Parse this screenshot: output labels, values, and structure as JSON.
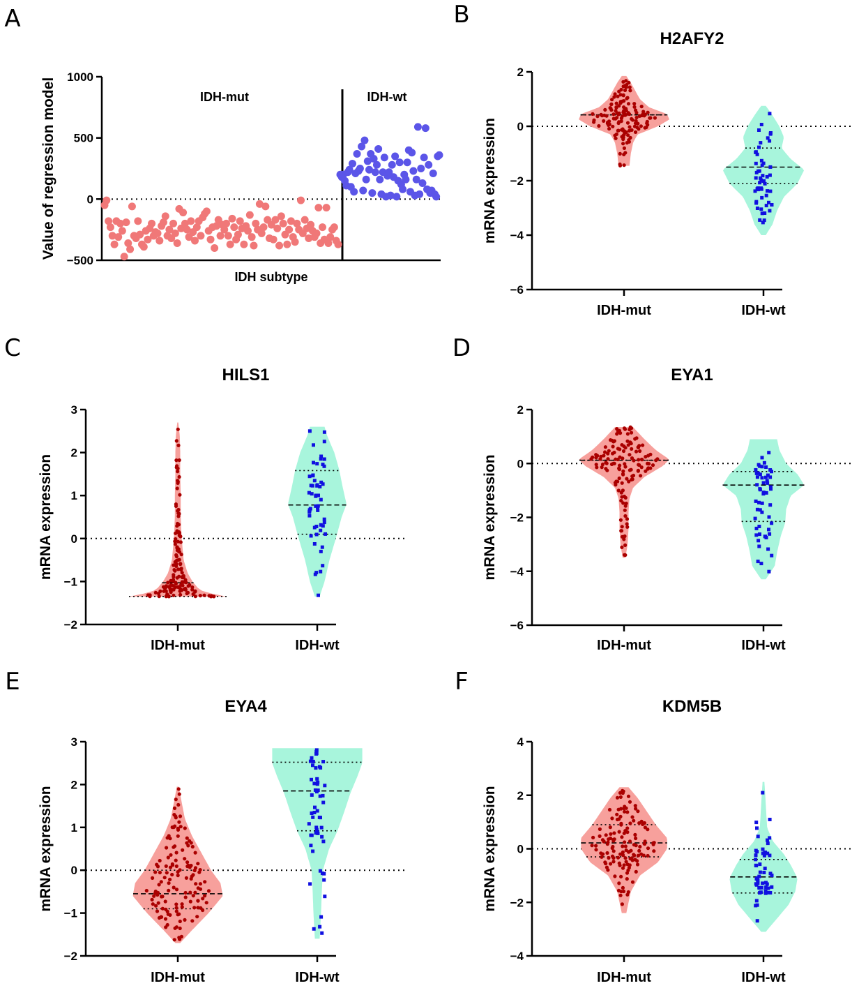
{
  "colors": {
    "mut_fill": "#f7a09c",
    "mut_point": "#aa0000",
    "wt_fill": "#a8f5dc",
    "wt_point": "#1010e0",
    "scatter_mut": "#f07878",
    "scatter_wt": "#5b55e8",
    "axis": "#000000"
  },
  "chart_data": [
    {
      "id": "A",
      "letter": "A",
      "type": "scatter",
      "title": "",
      "xlabel": "IDH subtype",
      "ylabel": "Value of regression model",
      "ylim": [
        -500,
        1000
      ],
      "yticks": [
        -500,
        0,
        500,
        1000
      ],
      "ytick_labels": [
        "−500",
        "0",
        "500",
        "1000"
      ],
      "group_labels": [
        "IDH-mut",
        "IDH-wt"
      ],
      "reference_line": 0,
      "series": [
        {
          "name": "IDH-mut",
          "values": [
            -50,
            -10,
            -180,
            -230,
            -300,
            -370,
            -180,
            -310,
            -200,
            -260,
            -470,
            -190,
            -360,
            -410,
            -60,
            -300,
            -320,
            -180,
            -290,
            -370,
            -390,
            -260,
            -330,
            -240,
            -200,
            -300,
            -270,
            -280,
            -340,
            -220,
            -190,
            -140,
            -300,
            -250,
            -320,
            -200,
            -280,
            -360,
            -80,
            -240,
            -110,
            -200,
            -250,
            -310,
            -180,
            -270,
            -340,
            -230,
            -180,
            -300,
            -150,
            -120,
            -100,
            -260,
            -330,
            -230,
            -400,
            -220,
            -170,
            -300,
            -210,
            -250,
            -200,
            -300,
            -370,
            -160,
            -230,
            -330,
            -290,
            -180,
            -240,
            -370,
            -220,
            -260,
            -130,
            -310,
            -380,
            -200,
            -250,
            -40,
            -280,
            -230,
            -60,
            -170,
            -320,
            -210,
            -330,
            -170,
            -240,
            -380,
            -140,
            -200,
            -290,
            -370,
            -250,
            -180,
            -310,
            -350,
            -200,
            -250,
            -10,
            -280,
            -170,
            -240,
            -320,
            -210,
            -260,
            -310,
            -280,
            -70,
            -360,
            -230,
            -330,
            -70,
            -360,
            -310,
            -250,
            -230,
            -340,
            -370
          ],
          "marker": "circle"
        },
        {
          "name": "IDH-wt",
          "values": [
            200,
            180,
            200,
            150,
            110,
            220,
            240,
            100,
            290,
            60,
            210,
            370,
            230,
            250,
            430,
            70,
            480,
            160,
            310,
            240,
            370,
            50,
            330,
            220,
            280,
            410,
            160,
            40,
            220,
            340,
            20,
            190,
            220,
            30,
            280,
            180,
            350,
            20,
            150,
            300,
            120,
            80,
            200,
            160,
            300,
            400,
            60,
            380,
            230,
            30,
            160,
            590,
            40,
            250,
            130,
            340,
            580,
            80,
            280,
            50,
            70,
            210,
            40,
            20,
            350,
            360
          ],
          "marker": "circle"
        }
      ]
    },
    {
      "id": "B",
      "letter": "B",
      "type": "violin",
      "title": "H2AFY2",
      "xlabel": "",
      "ylabel": "mRNA expression",
      "ylim": [
        -6,
        2
      ],
      "yticks": [
        -6,
        -4,
        -2,
        0,
        2
      ],
      "ytick_labels": [
        "−6",
        "−4",
        "−2",
        "0",
        "2"
      ],
      "categories": [
        "IDH-mut",
        "IDH-wt"
      ],
      "reference_line": 0,
      "groups": [
        {
          "name": "IDH-mut",
          "min": -1.45,
          "max": 1.85,
          "median": 0.42,
          "q1": 0.42,
          "q3": 0.42,
          "density": [
            [
              -1.45,
              0.12
            ],
            [
              -1.0,
              0.15
            ],
            [
              -0.6,
              0.2
            ],
            [
              -0.3,
              0.3
            ],
            [
              0.0,
              0.75
            ],
            [
              0.25,
              1.0
            ],
            [
              0.45,
              0.95
            ],
            [
              0.7,
              0.55
            ],
            [
              1.0,
              0.35
            ],
            [
              1.3,
              0.25
            ],
            [
              1.6,
              0.15
            ],
            [
              1.85,
              0.05
            ]
          ]
        },
        {
          "name": "IDH-wt",
          "min": -4.0,
          "max": 0.75,
          "median": -1.5,
          "q1": -2.1,
          "q3": -0.8,
          "density": [
            [
              -4.0,
              0.05
            ],
            [
              -3.6,
              0.2
            ],
            [
              -3.1,
              0.3
            ],
            [
              -2.6,
              0.45
            ],
            [
              -2.1,
              0.75
            ],
            [
              -1.6,
              0.9
            ],
            [
              -1.2,
              0.6
            ],
            [
              -0.8,
              0.4
            ],
            [
              -0.4,
              0.45
            ],
            [
              0.0,
              0.35
            ],
            [
              0.4,
              0.2
            ],
            [
              0.75,
              0.05
            ]
          ]
        }
      ]
    },
    {
      "id": "C",
      "letter": "C",
      "type": "violin",
      "title": "HILS1",
      "xlabel": "",
      "ylabel": "mRNA expression",
      "ylim": [
        -2,
        3
      ],
      "yticks": [
        -2,
        -1,
        0,
        1,
        2,
        3
      ],
      "ytick_labels": [
        "−2",
        "−1",
        "0",
        "1",
        "2",
        "3"
      ],
      "categories": [
        "IDH-mut",
        "IDH-wt"
      ],
      "reference_line": 0,
      "groups": [
        {
          "name": "IDH-mut",
          "min": -1.35,
          "max": 2.7,
          "median": -1.03,
          "q1": -1.35,
          "q3": -1.03,
          "density": [
            [
              -1.35,
              1.0
            ],
            [
              -1.3,
              0.75
            ],
            [
              -1.2,
              0.45
            ],
            [
              -1.0,
              0.3
            ],
            [
              -0.8,
              0.2
            ],
            [
              -0.5,
              0.12
            ],
            [
              0.0,
              0.08
            ],
            [
              0.5,
              0.06
            ],
            [
              1.0,
              0.06
            ],
            [
              1.5,
              0.05
            ],
            [
              2.0,
              0.05
            ],
            [
              2.4,
              0.04
            ],
            [
              2.7,
              0.01
            ]
          ]
        },
        {
          "name": "IDH-wt",
          "min": -1.35,
          "max": 2.6,
          "median": 0.78,
          "q1": 0.1,
          "q3": 1.58,
          "density": [
            [
              -1.35,
              0.05
            ],
            [
              -1.0,
              0.15
            ],
            [
              -0.5,
              0.25
            ],
            [
              0.0,
              0.38
            ],
            [
              0.5,
              0.5
            ],
            [
              0.8,
              0.6
            ],
            [
              1.2,
              0.52
            ],
            [
              1.6,
              0.45
            ],
            [
              2.0,
              0.35
            ],
            [
              2.4,
              0.2
            ],
            [
              2.6,
              0.15
            ]
          ]
        }
      ]
    },
    {
      "id": "D",
      "letter": "D",
      "type": "violin",
      "title": "EYA1",
      "xlabel": "",
      "ylabel": "mRNA expression",
      "ylim": [
        -6,
        2
      ],
      "yticks": [
        -6,
        -4,
        -2,
        0,
        2
      ],
      "ytick_labels": [
        "−6",
        "−4",
        "−2",
        "0",
        "2"
      ],
      "categories": [
        "IDH-mut",
        "IDH-wt"
      ],
      "reference_line": 0,
      "groups": [
        {
          "name": "IDH-mut",
          "min": -3.5,
          "max": 1.35,
          "median": 0.12,
          "q1": 0.12,
          "q3": 0.12,
          "density": [
            [
              -3.5,
              0.03
            ],
            [
              -3.0,
              0.08
            ],
            [
              -2.4,
              0.1
            ],
            [
              -1.8,
              0.1
            ],
            [
              -1.3,
              0.12
            ],
            [
              -0.9,
              0.2
            ],
            [
              -0.5,
              0.45
            ],
            [
              -0.1,
              0.85
            ],
            [
              0.15,
              1.0
            ],
            [
              0.5,
              0.7
            ],
            [
              0.9,
              0.45
            ],
            [
              1.35,
              0.2
            ]
          ]
        },
        {
          "name": "IDH-wt",
          "min": -4.3,
          "max": 0.9,
          "median": -0.8,
          "q1": -2.15,
          "q3": -0.3,
          "density": [
            [
              -4.3,
              0.05
            ],
            [
              -3.8,
              0.25
            ],
            [
              -3.3,
              0.3
            ],
            [
              -2.7,
              0.38
            ],
            [
              -2.2,
              0.48
            ],
            [
              -1.7,
              0.5
            ],
            [
              -1.2,
              0.6
            ],
            [
              -0.8,
              0.9
            ],
            [
              -0.4,
              0.75
            ],
            [
              0.0,
              0.5
            ],
            [
              0.5,
              0.35
            ],
            [
              0.9,
              0.3
            ]
          ]
        }
      ]
    },
    {
      "id": "E",
      "letter": "E",
      "type": "violin",
      "title": "EYA4",
      "xlabel": "",
      "ylabel": "mRNA expression",
      "ylim": [
        -2,
        3
      ],
      "yticks": [
        -2,
        -1,
        0,
        1,
        2,
        3
      ],
      "ytick_labels": [
        "−2",
        "−1",
        "0",
        "1",
        "2",
        "3"
      ],
      "categories": [
        "IDH-mut",
        "IDH-wt"
      ],
      "reference_line": 0,
      "groups": [
        {
          "name": "IDH-mut",
          "min": -1.7,
          "max": 1.95,
          "median": -0.55,
          "q1": -0.9,
          "q3": 0.0,
          "density": [
            [
              -1.7,
              0.05
            ],
            [
              -1.4,
              0.3
            ],
            [
              -1.0,
              0.65
            ],
            [
              -0.6,
              0.95
            ],
            [
              -0.3,
              0.9
            ],
            [
              0.0,
              0.7
            ],
            [
              0.4,
              0.5
            ],
            [
              0.8,
              0.3
            ],
            [
              1.2,
              0.15
            ],
            [
              1.6,
              0.08
            ],
            [
              1.95,
              0.02
            ]
          ]
        },
        {
          "name": "IDH-wt",
          "min": -1.6,
          "max": 2.85,
          "median": 1.85,
          "q1": 0.92,
          "q3": 2.52,
          "density": [
            [
              -1.6,
              0.05
            ],
            [
              -1.0,
              0.08
            ],
            [
              -0.4,
              0.1
            ],
            [
              0.0,
              0.12
            ],
            [
              0.5,
              0.25
            ],
            [
              0.9,
              0.42
            ],
            [
              1.3,
              0.55
            ],
            [
              1.8,
              0.7
            ],
            [
              2.2,
              0.85
            ],
            [
              2.5,
              0.95
            ],
            [
              2.7,
              0.95
            ],
            [
              2.85,
              0.95
            ]
          ]
        }
      ]
    },
    {
      "id": "F",
      "letter": "F",
      "type": "violin",
      "title": "KDM5B",
      "xlabel": "",
      "ylabel": "mRNA expression",
      "ylim": [
        -4,
        4
      ],
      "yticks": [
        -4,
        -2,
        0,
        2,
        4
      ],
      "ytick_labels": [
        "−4",
        "−2",
        "0",
        "2",
        "4"
      ],
      "categories": [
        "IDH-mut",
        "IDH-wt"
      ],
      "reference_line": 0,
      "groups": [
        {
          "name": "IDH-mut",
          "min": -2.4,
          "max": 2.3,
          "median": 0.22,
          "q1": -0.3,
          "q3": 0.9,
          "density": [
            [
              -2.4,
              0.05
            ],
            [
              -2.0,
              0.1
            ],
            [
              -1.6,
              0.15
            ],
            [
              -1.0,
              0.35
            ],
            [
              -0.5,
              0.75
            ],
            [
              0.0,
              0.95
            ],
            [
              0.4,
              0.95
            ],
            [
              0.9,
              0.7
            ],
            [
              1.4,
              0.5
            ],
            [
              1.9,
              0.3
            ],
            [
              2.3,
              0.1
            ]
          ]
        },
        {
          "name": "IDH-wt",
          "min": -3.1,
          "max": 2.5,
          "median": -1.05,
          "q1": -1.65,
          "q3": -0.4,
          "density": [
            [
              -3.1,
              0.05
            ],
            [
              -2.6,
              0.3
            ],
            [
              -2.1,
              0.55
            ],
            [
              -1.6,
              0.7
            ],
            [
              -1.1,
              0.75
            ],
            [
              -0.6,
              0.6
            ],
            [
              -0.2,
              0.45
            ],
            [
              0.3,
              0.2
            ],
            [
              0.8,
              0.08
            ],
            [
              1.4,
              0.06
            ],
            [
              2.0,
              0.04
            ],
            [
              2.5,
              0.02
            ]
          ]
        }
      ]
    }
  ]
}
